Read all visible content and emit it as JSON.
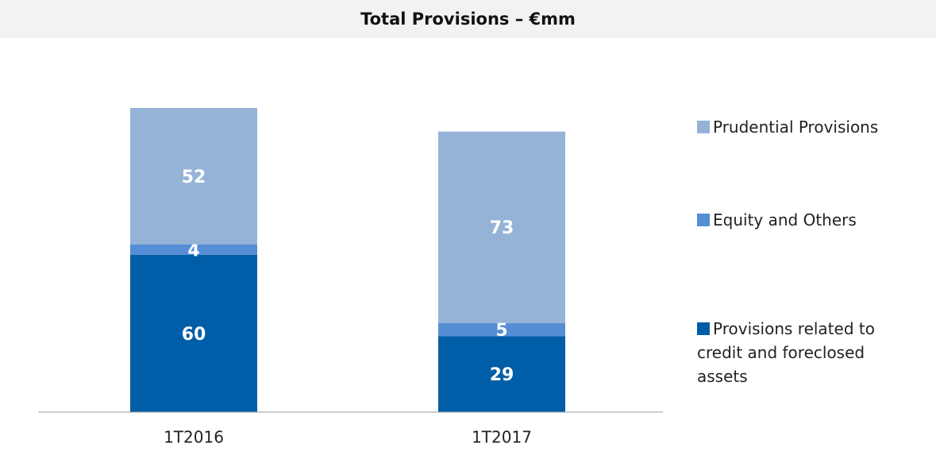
{
  "chart_data": {
    "type": "stacked_bar",
    "title": "Total Provisions – €mm",
    "categories": [
      "1T2016",
      "1T2017"
    ],
    "series": [
      {
        "name": "Provisions related to credit and foreclosed assets",
        "color": "#005ea8",
        "values": [
          60,
          29
        ]
      },
      {
        "name": "Equity and Others",
        "color": "#558ed5",
        "values": [
          4,
          5
        ]
      },
      {
        "name": "Prudential Provisions",
        "color": "#95b3d7",
        "values": [
          52,
          73
        ]
      }
    ]
  }
}
